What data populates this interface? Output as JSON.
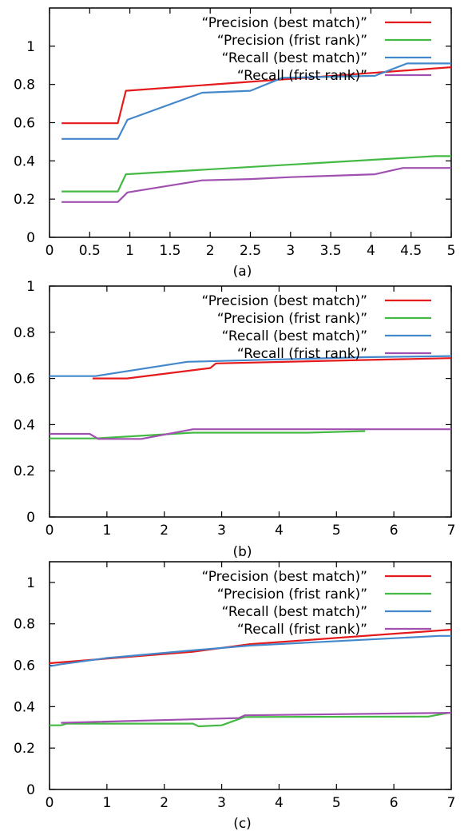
{
  "chart_data": [
    {
      "type": "line",
      "panel_label": "(a)",
      "xlim": [
        0,
        5
      ],
      "ylim": [
        0,
        1.2
      ],
      "xticks": [
        0,
        0.5,
        1,
        1.5,
        2,
        2.5,
        3,
        3.5,
        4,
        4.5,
        5
      ],
      "xtick_labels": [
        "0",
        "0.5",
        "1",
        "1.5",
        "2",
        "2.5",
        "3",
        "3.5",
        "4",
        "4.5",
        "5"
      ],
      "yticks": [
        0,
        0.2,
        0.4,
        0.6,
        0.8,
        1
      ],
      "ytick_labels": [
        "0",
        "0.2",
        "0.4",
        "0.6",
        "0.8",
        "1"
      ],
      "grid": false,
      "legend_position": "top-right",
      "series": [
        {
          "name": "“Precision  (best match)”",
          "color": "#e41a1c",
          "x": [
            0.15,
            0.85,
            0.95,
            5.0
          ],
          "y": [
            0.597,
            0.597,
            0.767,
            0.89
          ]
        },
        {
          "name": "“Precision  (frist  rank)”",
          "color": "#44b944",
          "x": [
            0.15,
            0.85,
            0.95,
            4.8,
            5.0
          ],
          "y": [
            0.24,
            0.24,
            0.33,
            0.425,
            0.425
          ]
        },
        {
          "name": "“Recall  (best match)”",
          "color": "#4488cc",
          "x": [
            0.15,
            0.85,
            0.97,
            1.9,
            2.5,
            2.9,
            4.05,
            4.45,
            5.0
          ],
          "y": [
            0.515,
            0.515,
            0.615,
            0.757,
            0.767,
            0.835,
            0.845,
            0.91,
            0.91
          ]
        },
        {
          "name": "“Recall  (frist rank)”",
          "color": "#a050b0",
          "x": [
            0.15,
            0.85,
            0.97,
            1.9,
            2.5,
            3.0,
            4.05,
            4.4,
            5.0
          ],
          "y": [
            0.185,
            0.185,
            0.235,
            0.298,
            0.305,
            0.315,
            0.33,
            0.363,
            0.363
          ]
        }
      ]
    },
    {
      "type": "line",
      "panel_label": "(b)",
      "xlim": [
        0,
        7
      ],
      "ylim": [
        0,
        1
      ],
      "xticks": [
        0,
        1,
        2,
        3,
        4,
        5,
        6,
        7
      ],
      "xtick_labels": [
        "0",
        "1",
        "2",
        "3",
        "4",
        "5",
        "6",
        "7"
      ],
      "yticks": [
        0,
        0.2,
        0.4,
        0.6,
        0.8,
        1
      ],
      "ytick_labels": [
        "0",
        "0.2",
        "0.4",
        "0.6",
        "0.8",
        "1"
      ],
      "grid": false,
      "legend_position": "top-right",
      "series": [
        {
          "name": "“Precision  (best match)”",
          "color": "#e41a1c",
          "x": [
            0.75,
            1.35,
            2.8,
            2.9,
            5.5,
            7.0
          ],
          "y": [
            0.6,
            0.6,
            0.645,
            0.665,
            0.68,
            0.688
          ]
        },
        {
          "name": "“Precision  (frist  rank)”",
          "color": "#44b944",
          "x": [
            0.0,
            0.8,
            2.5,
            4.5,
            5.5
          ],
          "y": [
            0.34,
            0.34,
            0.365,
            0.365,
            0.372
          ]
        },
        {
          "name": "“Recall  (best match)”",
          "color": "#4488cc",
          "x": [
            0.0,
            0.8,
            2.4,
            5.5,
            7.0
          ],
          "y": [
            0.61,
            0.61,
            0.672,
            0.692,
            0.697
          ]
        },
        {
          "name": "“Recall  (frist rank)”",
          "color": "#a050b0",
          "x": [
            0.0,
            0.7,
            0.85,
            1.6,
            2.5,
            7.0
          ],
          "y": [
            0.36,
            0.36,
            0.338,
            0.338,
            0.38,
            0.38
          ]
        }
      ]
    },
    {
      "type": "line",
      "panel_label": "(c)",
      "xlim": [
        0,
        7
      ],
      "ylim": [
        0,
        1.1
      ],
      "xticks": [
        0,
        1,
        2,
        3,
        4,
        5,
        6,
        7
      ],
      "xtick_labels": [
        "0",
        "1",
        "2",
        "3",
        "4",
        "5",
        "6",
        "7"
      ],
      "yticks": [
        0,
        0.2,
        0.4,
        0.6,
        0.8,
        1
      ],
      "ytick_labels": [
        "0",
        "0.2",
        "0.4",
        "0.6",
        "0.8",
        "1"
      ],
      "grid": false,
      "legend_position": "top-right",
      "series": [
        {
          "name": "“Precision  (best match)”",
          "color": "#e41a1c",
          "x": [
            0.0,
            2.5,
            3.5,
            7.0
          ],
          "y": [
            0.61,
            0.665,
            0.702,
            0.772
          ]
        },
        {
          "name": "“Precision  (frist  rank)”",
          "color": "#44b944",
          "x": [
            0.0,
            0.2,
            0.3,
            2.5,
            2.6,
            3.0,
            3.4,
            6.6,
            7.0
          ],
          "y": [
            0.31,
            0.31,
            0.318,
            0.318,
            0.305,
            0.31,
            0.35,
            0.352,
            0.372
          ]
        },
        {
          "name": "“Recall  (best match)”",
          "color": "#4488cc",
          "x": [
            0.0,
            0.2,
            1.0,
            2.5,
            3.5,
            6.8,
            7.0
          ],
          "y": [
            0.595,
            0.605,
            0.635,
            0.672,
            0.695,
            0.742,
            0.742
          ]
        },
        {
          "name": "“Recall  (frist rank)”",
          "color": "#a050b0",
          "x": [
            0.2,
            3.3,
            3.4,
            7.0
          ],
          "y": [
            0.322,
            0.345,
            0.358,
            0.37
          ]
        }
      ]
    }
  ]
}
